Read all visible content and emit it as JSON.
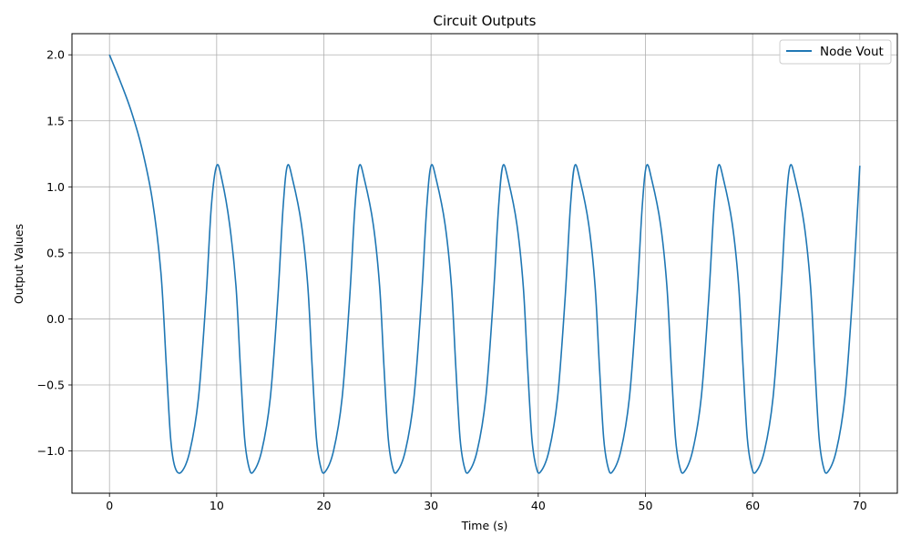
{
  "chart_data": {
    "type": "line",
    "title": "Circuit Outputs",
    "xlabel": "Time (s)",
    "ylabel": "Output Values",
    "xlim": [
      -3.5,
      73.5
    ],
    "ylim": [
      -1.32,
      2.16
    ],
    "xticks": [
      0,
      10,
      20,
      30,
      40,
      50,
      60,
      70
    ],
    "yticks": [
      -1.0,
      -0.5,
      0.0,
      0.5,
      1.0,
      1.5,
      2.0
    ],
    "ytick_labels": [
      "−1.0",
      "−0.5",
      "0.0",
      "0.5",
      "1.0",
      "1.5",
      "2.0"
    ],
    "grid": true,
    "legend_position": "top-right",
    "series": [
      {
        "name": "Node Vout",
        "color": "#1f77b4",
        "x": [
          0,
          1,
          2,
          3,
          4,
          4.8,
          5.3,
          5.7,
          6.1,
          6.7,
          7.5,
          8.3,
          9.0,
          9.5,
          10.0,
          10.5,
          11.2,
          11.8,
          12.2,
          12.6,
          13.0,
          13.4,
          14.2,
          15.0,
          15.7,
          16.2,
          16.6,
          17.1,
          17.9,
          18.5,
          18.9,
          19.3,
          19.7,
          20.1,
          20.9,
          21.7,
          22.4,
          22.9,
          23.3,
          23.8,
          24.6,
          25.2,
          25.6,
          26.0,
          26.4,
          26.8,
          27.6,
          28.4,
          29.1,
          29.6,
          30.0,
          30.5,
          31.3,
          31.9,
          32.3,
          32.7,
          33.1,
          33.5,
          34.3,
          35.1,
          35.8,
          36.3,
          36.7,
          37.2,
          38.0,
          38.6,
          39.0,
          39.4,
          39.8,
          40.2,
          41.0,
          41.8,
          42.5,
          43.0,
          43.4,
          43.9,
          44.7,
          45.3,
          45.7,
          46.1,
          46.5,
          46.9,
          47.7,
          48.5,
          49.2,
          49.7,
          50.1,
          50.6,
          51.4,
          52.0,
          52.4,
          52.8,
          53.2,
          53.6,
          54.4,
          55.2,
          55.9,
          56.4,
          56.8,
          57.3,
          58.1,
          58.7,
          59.1,
          59.5,
          59.9,
          60.3,
          61.1,
          61.9,
          62.6,
          63.1,
          63.5,
          64.0,
          64.8,
          65.4,
          65.8,
          66.2,
          66.6,
          67.0,
          67.8,
          68.6,
          69.3,
          69.8,
          70.0
        ],
        "y": [
          2.0,
          1.8,
          1.58,
          1.3,
          0.9,
          0.35,
          -0.35,
          -0.9,
          -1.12,
          -1.16,
          -1.0,
          -0.6,
          0.15,
          0.85,
          1.16,
          1.05,
          0.72,
          0.25,
          -0.35,
          -0.9,
          -1.12,
          -1.16,
          -1.0,
          -0.6,
          0.15,
          0.85,
          1.16,
          1.05,
          0.72,
          0.25,
          -0.35,
          -0.9,
          -1.12,
          -1.16,
          -1.0,
          -0.6,
          0.15,
          0.85,
          1.16,
          1.05,
          0.72,
          0.25,
          -0.35,
          -0.9,
          -1.12,
          -1.16,
          -1.0,
          -0.6,
          0.15,
          0.85,
          1.16,
          1.05,
          0.72,
          0.25,
          -0.35,
          -0.9,
          -1.12,
          -1.16,
          -1.0,
          -0.6,
          0.15,
          0.85,
          1.16,
          1.05,
          0.72,
          0.25,
          -0.35,
          -0.9,
          -1.12,
          -1.16,
          -1.0,
          -0.6,
          0.15,
          0.85,
          1.16,
          1.05,
          0.72,
          0.25,
          -0.35,
          -0.9,
          -1.12,
          -1.16,
          -1.0,
          -0.6,
          0.15,
          0.85,
          1.16,
          1.05,
          0.72,
          0.25,
          -0.35,
          -0.9,
          -1.12,
          -1.16,
          -1.0,
          -0.6,
          0.15,
          0.85,
          1.16,
          1.05,
          0.72,
          0.25,
          -0.35,
          -0.9,
          -1.12,
          -1.16,
          -1.0,
          -0.6,
          0.15,
          0.85,
          1.16,
          1.05,
          0.72,
          0.25,
          -0.35,
          -0.9,
          -1.12,
          -1.16,
          -1.0,
          -0.6,
          0.15,
          0.85,
          1.16
        ]
      }
    ]
  }
}
